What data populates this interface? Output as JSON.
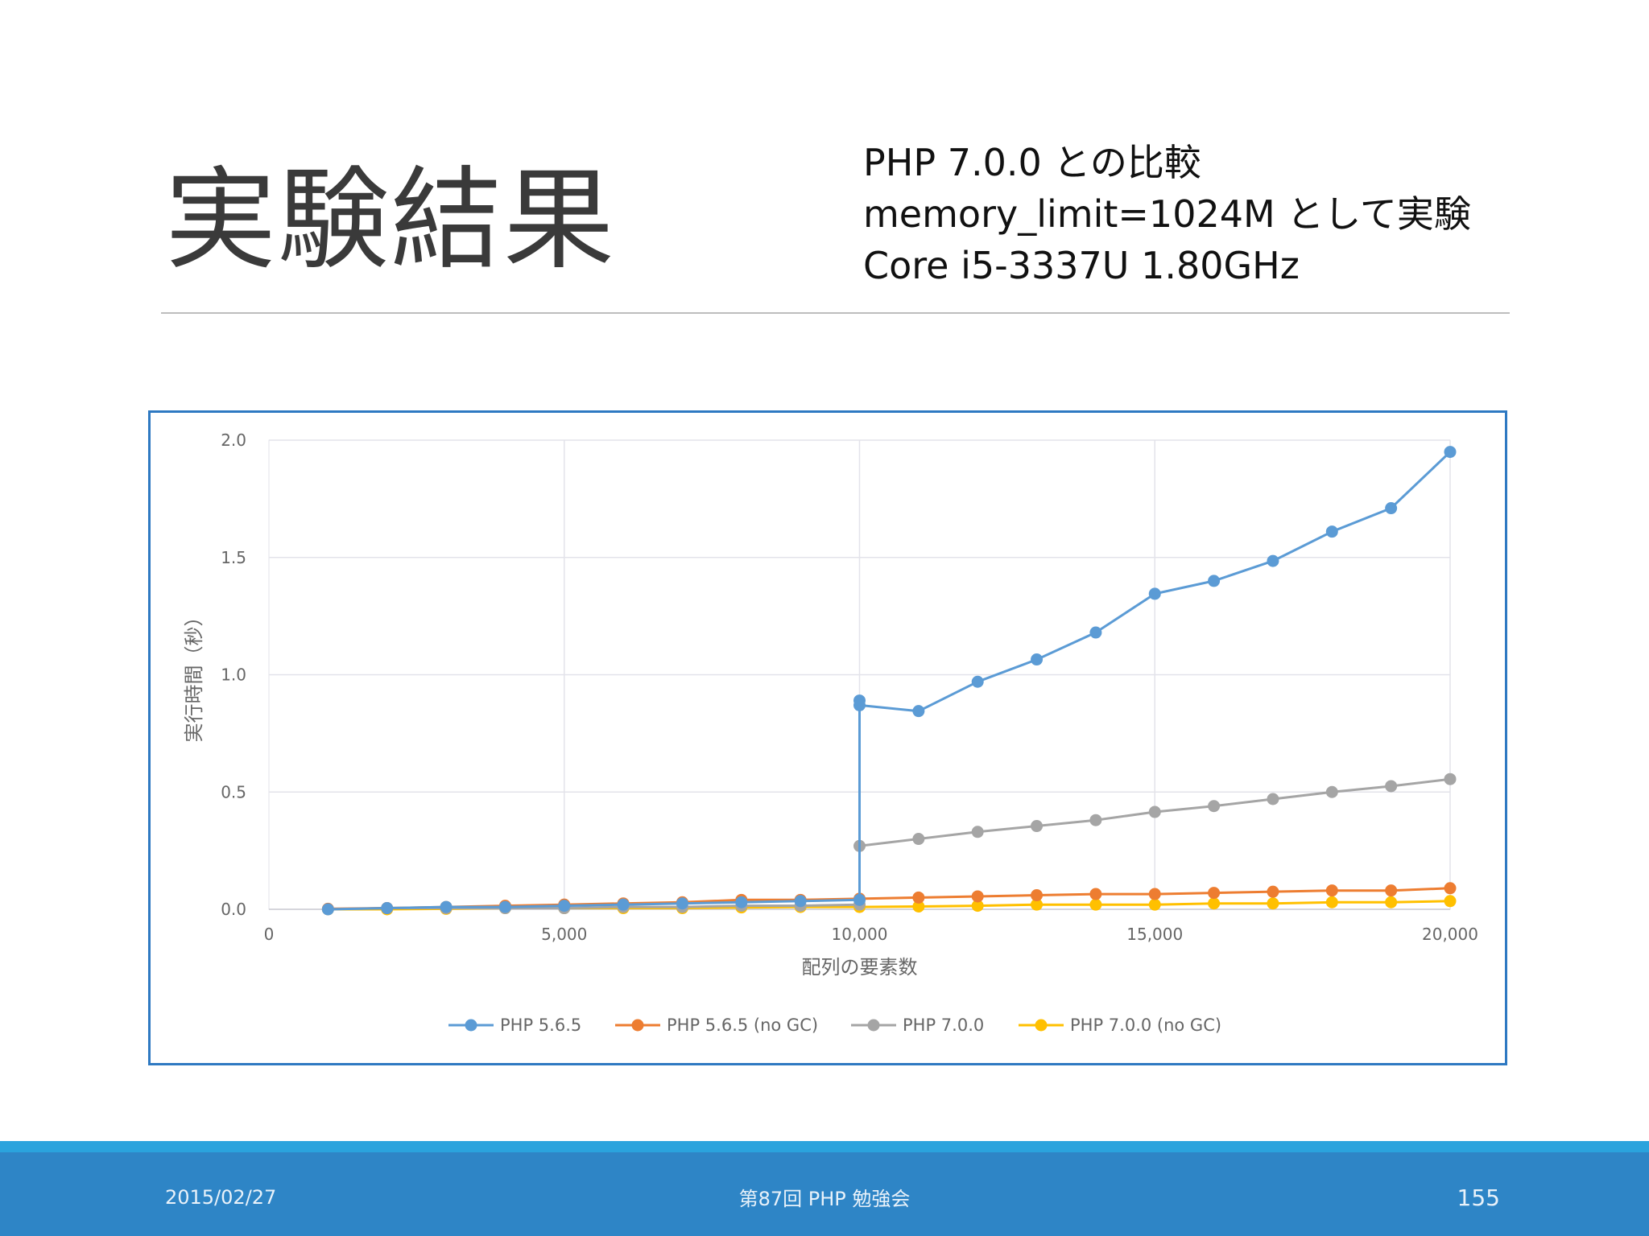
{
  "slide": {
    "title": "実験結果",
    "subtitle_lines": [
      "PHP 7.0.0 との比較",
      "memory_limit=1024M として実験",
      "Core i5-3337U 1.80GHz"
    ],
    "footer": {
      "date": "2015/02/27",
      "event": "第87回 PHP 勉強会",
      "page": "155"
    }
  },
  "colors": {
    "accent_frame": "#2e79c2",
    "footer_band": "#2e85c6",
    "footer_stripe": "#2aa3dd"
  },
  "chart_data": {
    "type": "line",
    "title": "",
    "xlabel": "配列の要素数",
    "ylabel": "実行時間（秒）",
    "xlim": [
      0,
      20000
    ],
    "ylim": [
      0,
      2.0
    ],
    "x_ticks": [
      0,
      5000,
      10000,
      15000,
      20000
    ],
    "x_tick_labels": [
      "0",
      "5,000",
      "10,000",
      "15,000",
      "20,000"
    ],
    "y_ticks": [
      0,
      0.5,
      1.0,
      1.5,
      2.0
    ],
    "y_tick_labels": [
      "0.0",
      "0.5",
      "1.0",
      "1.5",
      "2.0"
    ],
    "grid": true,
    "legend_position": "bottom",
    "series": [
      {
        "name": "PHP 5.6.5",
        "color": "#5b9bd5",
        "points": [
          [
            1000,
            0.0
          ],
          [
            2000,
            0.005
          ],
          [
            3000,
            0.01
          ],
          [
            4000,
            0.01
          ],
          [
            5000,
            0.015
          ],
          [
            6000,
            0.02
          ],
          [
            7000,
            0.025
          ],
          [
            8000,
            0.03
          ],
          [
            9000,
            0.035
          ],
          [
            10000,
            0.04
          ],
          [
            10000,
            0.89
          ],
          [
            10000,
            0.87
          ],
          [
            11000,
            0.845
          ],
          [
            12000,
            0.97
          ],
          [
            13000,
            1.065
          ],
          [
            14000,
            1.18
          ],
          [
            15000,
            1.345
          ],
          [
            16000,
            1.4
          ],
          [
            17000,
            1.485
          ],
          [
            18000,
            1.61
          ],
          [
            19000,
            1.71
          ],
          [
            20000,
            1.95
          ]
        ]
      },
      {
        "name": "PHP 5.6.5 (no GC)",
        "color": "#ed7d31",
        "points": [
          [
            1000,
            0.002
          ],
          [
            2000,
            0.005
          ],
          [
            3000,
            0.01
          ],
          [
            4000,
            0.015
          ],
          [
            5000,
            0.02
          ],
          [
            6000,
            0.025
          ],
          [
            7000,
            0.03
          ],
          [
            8000,
            0.04
          ],
          [
            9000,
            0.04
          ],
          [
            10000,
            0.045
          ],
          [
            11000,
            0.05
          ],
          [
            12000,
            0.055
          ],
          [
            13000,
            0.06
          ],
          [
            14000,
            0.065
          ],
          [
            15000,
            0.065
          ],
          [
            16000,
            0.07
          ],
          [
            17000,
            0.075
          ],
          [
            18000,
            0.08
          ],
          [
            19000,
            0.08
          ],
          [
            20000,
            0.09
          ]
        ]
      },
      {
        "name": "PHP 7.0.0",
        "color": "#a5a5a5",
        "points": [
          [
            1000,
            0.0
          ],
          [
            2000,
            0.005
          ],
          [
            3000,
            0.005
          ],
          [
            4000,
            0.005
          ],
          [
            5000,
            0.005
          ],
          [
            6000,
            0.01
          ],
          [
            7000,
            0.01
          ],
          [
            8000,
            0.015
          ],
          [
            9000,
            0.015
          ],
          [
            10000,
            0.02
          ],
          [
            10000,
            0.27
          ],
          [
            11000,
            0.3
          ],
          [
            12000,
            0.33
          ],
          [
            13000,
            0.355
          ],
          [
            14000,
            0.38
          ],
          [
            15000,
            0.415
          ],
          [
            16000,
            0.44
          ],
          [
            17000,
            0.47
          ],
          [
            18000,
            0.5
          ],
          [
            19000,
            0.525
          ],
          [
            20000,
            0.555
          ]
        ]
      },
      {
        "name": "PHP 7.0.0 (no GC)",
        "color": "#ffc000",
        "points": [
          [
            1000,
            0.0
          ],
          [
            2000,
            0.0
          ],
          [
            3000,
            0.002
          ],
          [
            4000,
            0.005
          ],
          [
            5000,
            0.005
          ],
          [
            6000,
            0.005
          ],
          [
            7000,
            0.005
          ],
          [
            8000,
            0.008
          ],
          [
            9000,
            0.01
          ],
          [
            10000,
            0.01
          ],
          [
            11000,
            0.012
          ],
          [
            12000,
            0.015
          ],
          [
            13000,
            0.02
          ],
          [
            14000,
            0.02
          ],
          [
            15000,
            0.02
          ],
          [
            16000,
            0.025
          ],
          [
            17000,
            0.025
          ],
          [
            18000,
            0.03
          ],
          [
            19000,
            0.03
          ],
          [
            20000,
            0.035
          ]
        ]
      }
    ]
  }
}
